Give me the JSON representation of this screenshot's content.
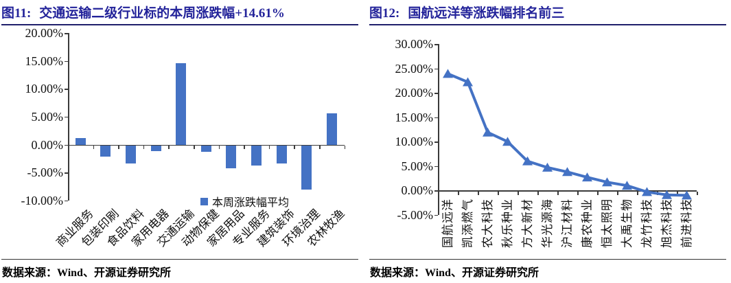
{
  "figures": [
    {
      "prefix": "图11:",
      "title": "交通运输二级行业标的本周涨跌幅+14.61%",
      "source": "数据来源：Wind、开源证券研究所"
    },
    {
      "prefix": "图12:",
      "title": "国航远洋等涨跌幅排名前三",
      "source": "数据来源：Wind、开源证券研究所"
    }
  ],
  "colors": {
    "accent": "#4472C4",
    "title_navy": "#23239A",
    "axis": "#3a3a3a"
  },
  "chart_data": [
    {
      "type": "bar",
      "title": "交通运输二级行业标的本周涨跌幅+14.61%",
      "categories": [
        "商业服务",
        "包装印刷",
        "食品饮料",
        "家用电器",
        "交通运输",
        "动物保健",
        "家居用品",
        "专业服务",
        "建筑装饰",
        "环境治理",
        "农林牧渔"
      ],
      "values": [
        1.2,
        -2.0,
        -3.2,
        -1.0,
        14.61,
        -1.1,
        -4.0,
        -3.6,
        -3.2,
        -7.8,
        5.6
      ],
      "unit": "%",
      "ylim": [
        -10,
        20
      ],
      "ytick_step": 5,
      "ytick_format": "percent-2dp",
      "grid": false,
      "legend": [
        "本周涨跌幅平均"
      ],
      "legend_position": "inside-bottom-right",
      "bar_color": "#4472C4"
    },
    {
      "type": "line",
      "marker": "triangle-up",
      "title": "国航远洋等涨跌幅排名前三",
      "categories": [
        "国航远洋",
        "凯添燃气",
        "农大科技",
        "秋乐种业",
        "方大新材",
        "华光源海",
        "沪江材料",
        "康农种业",
        "恒太照明",
        "大禹生物",
        "龙竹科技",
        "旭杰科技",
        "前进科技"
      ],
      "values": [
        23.9,
        22.2,
        11.9,
        10.0,
        6.0,
        4.7,
        3.8,
        2.7,
        1.7,
        1.0,
        -0.3,
        -0.9,
        -1.0
      ],
      "unit": "%",
      "ylim": [
        -5,
        30
      ],
      "ytick_step": 5,
      "ytick_format": "percent-2dp",
      "grid": false,
      "legend": [],
      "line_color": "#4472C4"
    }
  ]
}
